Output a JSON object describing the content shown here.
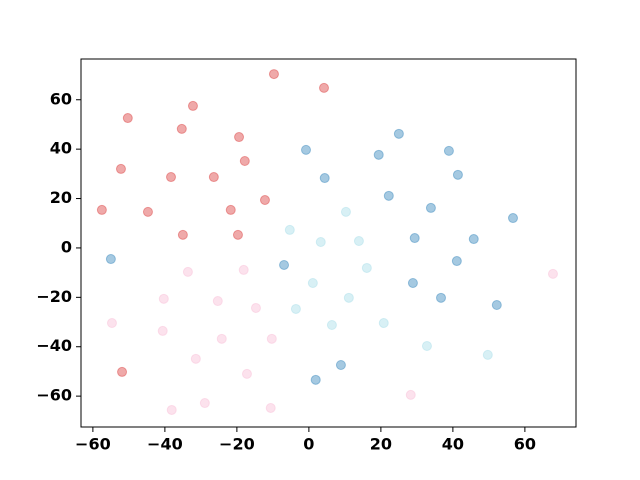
{
  "chart_data": {
    "type": "scatter",
    "xlim": [
      -63.3,
      74.2
    ],
    "ylim": [
      -72.5,
      76.5
    ],
    "xticks": [
      {
        "value": -60,
        "label": "−60"
      },
      {
        "value": -40,
        "label": "−40"
      },
      {
        "value": -20,
        "label": "−20"
      },
      0,
      20,
      40,
      60
    ],
    "yticks": [
      {
        "value": -60,
        "label": "−60"
      },
      {
        "value": -40,
        "label": "−40"
      },
      {
        "value": -20,
        "label": "−20"
      },
      0,
      20,
      40,
      60
    ],
    "alpha": 0.4,
    "series": [
      {
        "color": "#d62728",
        "x": [
          -9.7,
          4.2,
          -32.2,
          -50.3,
          -35.3,
          -19.4,
          -17.8,
          -52.2,
          -38.3,
          -26.4,
          -12.2,
          -57.5,
          -44.7,
          -21.7,
          -35.0,
          -19.7,
          -51.9
        ],
        "values": [
          70.4,
          64.8,
          57.5,
          52.6,
          48.2,
          44.9,
          35.2,
          32.0,
          28.7,
          28.7,
          19.4,
          15.4,
          14.6,
          15.4,
          5.3,
          5.3,
          -50.2
        ]
      },
      {
        "color": "#1f77b4",
        "x": [
          -0.8,
          25.0,
          19.4,
          38.9,
          4.4,
          41.4,
          22.2,
          33.9,
          56.7,
          -55.0,
          -6.9,
          29.4,
          45.8,
          41.1,
          28.9,
          36.7,
          52.2,
          8.9,
          1.9
        ],
        "values": [
          39.7,
          46.2,
          37.7,
          39.3,
          28.3,
          29.6,
          21.1,
          16.2,
          12.1,
          -4.5,
          -6.9,
          4.0,
          3.6,
          -5.3,
          -14.2,
          -20.2,
          -23.1,
          -47.4,
          -53.4
        ]
      },
      {
        "color": "#9edae5",
        "x": [
          -5.3,
          10.3,
          3.3,
          13.9,
          16.1,
          1.1,
          -3.6,
          11.1,
          6.4,
          20.8,
          32.8,
          49.7
        ],
        "values": [
          7.3,
          14.6,
          2.4,
          2.8,
          -8.1,
          -14.2,
          -24.7,
          -20.2,
          -31.2,
          -30.4,
          -39.7,
          -43.3
        ]
      },
      {
        "color": "#f7b6d2",
        "x": [
          67.8,
          -33.6,
          -18.1,
          -40.3,
          -25.3,
          -14.7,
          -54.7,
          -40.6,
          -24.2,
          -10.3,
          -31.4,
          -17.2,
          -28.9,
          -38.1,
          -10.6,
          28.3
        ],
        "values": [
          -10.5,
          -9.7,
          -8.9,
          -20.6,
          -21.5,
          -24.3,
          -30.4,
          -33.6,
          -36.8,
          -36.8,
          -44.9,
          -51.0,
          -62.8,
          -65.6,
          -64.8,
          -59.5
        ]
      }
    ]
  }
}
